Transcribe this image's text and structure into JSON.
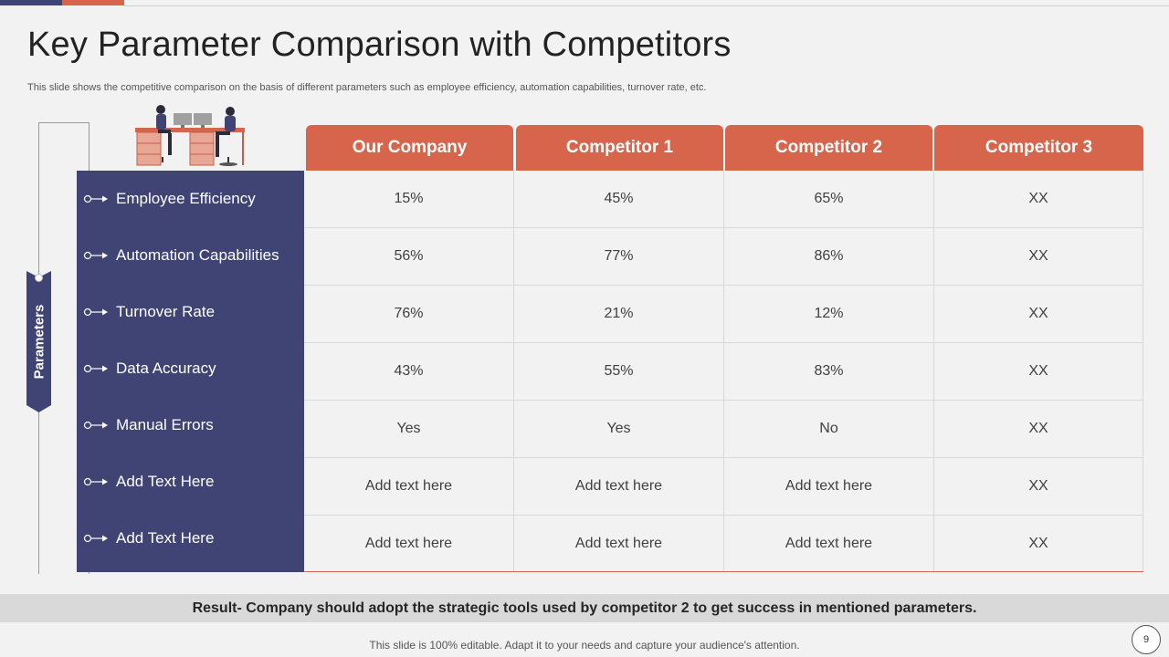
{
  "slide": {
    "title": "Key Parameter Comparison with Competitors",
    "subtitle": "This slide shows the competitive comparison on the  basis of different parameters such as employee efficiency, automation capabilities, turnover rate, etc.",
    "side_label": "Parameters",
    "result": "Result- Company should adopt the strategic tools used by competitor 2 to get success in mentioned parameters.",
    "footer": "This slide is 100% editable. Adapt it to your needs and capture your audience's attention.",
    "page_number": "9"
  },
  "table": {
    "columns": [
      "Our Company",
      "Competitor 1",
      "Competitor 2",
      "Competitor 3"
    ],
    "rows": [
      {
        "label": "Employee Efficiency",
        "values": [
          "15%",
          "45%",
          "65%",
          "XX"
        ]
      },
      {
        "label": "Automation Capabilities",
        "values": [
          "56%",
          "77%",
          "86%",
          "XX"
        ]
      },
      {
        "label": "Turnover Rate",
        "values": [
          "76%",
          "21%",
          "12%",
          "XX"
        ]
      },
      {
        "label": "Data Accuracy",
        "values": [
          "43%",
          "55%",
          "83%",
          "XX"
        ]
      },
      {
        "label": "Manual Errors",
        "values": [
          "Yes",
          "Yes",
          "No",
          "XX"
        ]
      },
      {
        "label": "Add Text Here",
        "values": [
          "Add text here",
          "Add text here",
          "Add text here",
          "XX"
        ]
      },
      {
        "label": "Add Text Here",
        "values": [
          "Add text here",
          "Add text here",
          "Add text here",
          "XX"
        ]
      }
    ]
  },
  "colors": {
    "navy": "#3f4474",
    "coral": "#d6654c",
    "result_bg": "#d9d9d9"
  },
  "icons": {
    "illustration": "office-desk-people-icon",
    "marker": "circle-arrow-icon"
  }
}
